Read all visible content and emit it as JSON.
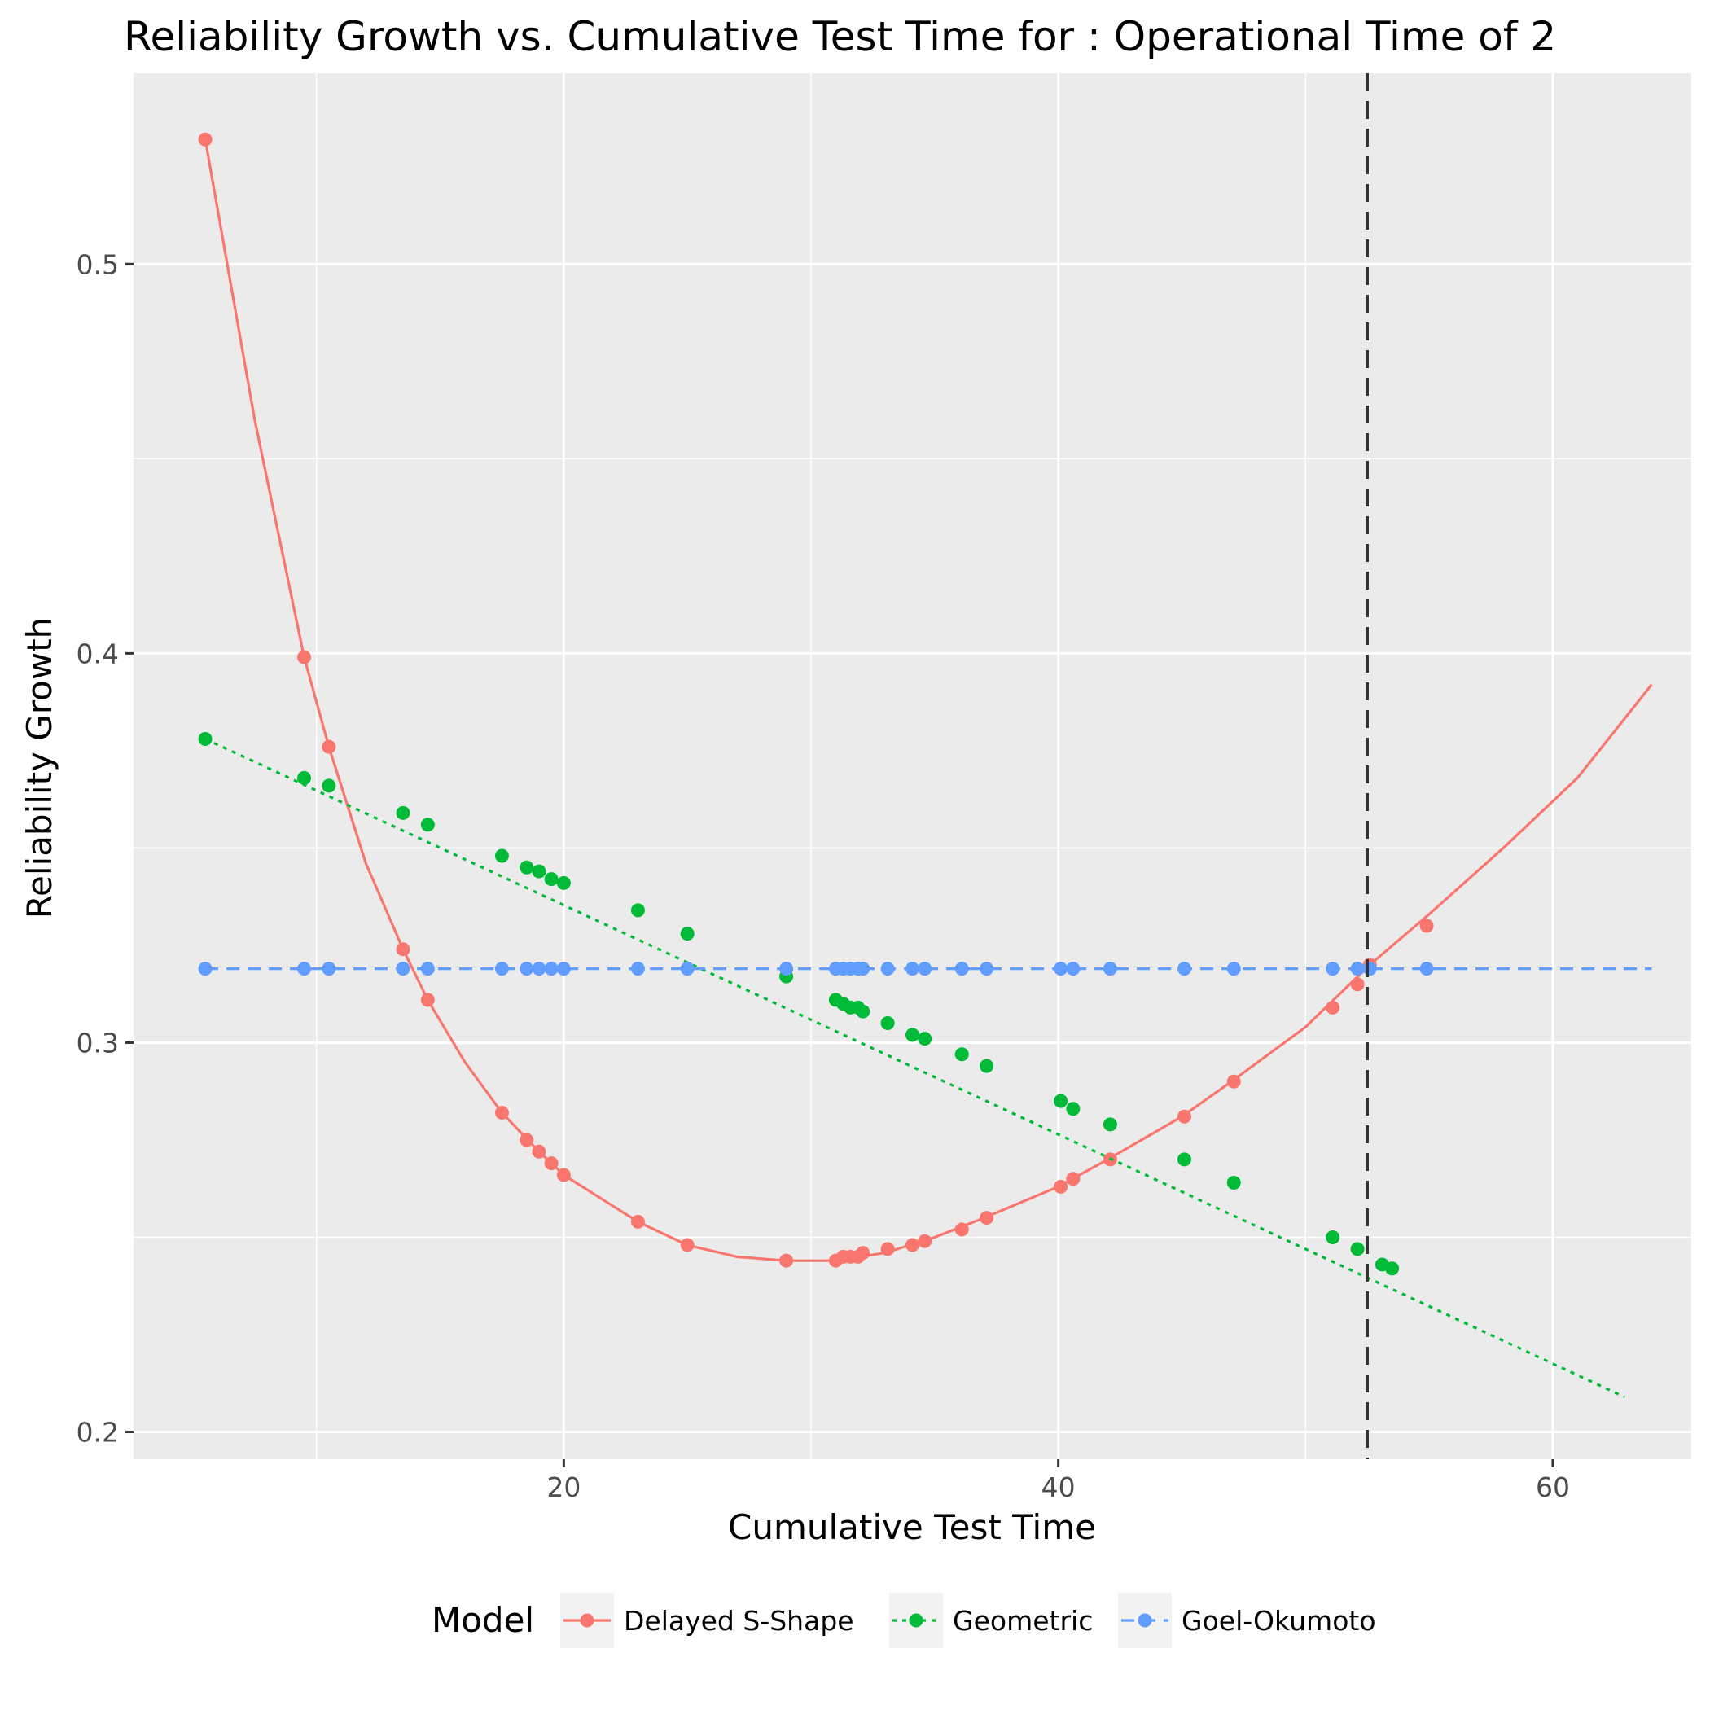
{
  "chart_data": {
    "type": "line",
    "title": "Reliability Growth vs. Cumulative Test Time for : Operational Time of 2",
    "xlabel": "Cumulative Test Time",
    "ylabel": "Reliability Growth",
    "xlim": [
      2.6,
      65.6
    ],
    "ylim": [
      0.193,
      0.549
    ],
    "x_ticks": [
      20,
      40,
      60
    ],
    "y_ticks": [
      0.2,
      0.3,
      0.4,
      0.5
    ],
    "x_minor_ticks": [
      10,
      30,
      50
    ],
    "y_minor_ticks": [
      0.25,
      0.35,
      0.45
    ],
    "grid": true,
    "panel_background": "#ebebeb",
    "grid_color": "#ffffff",
    "legend": {
      "title": "Model",
      "position": "bottom"
    },
    "vline": {
      "x": 52.5,
      "style": "dashed",
      "color": "#333333"
    },
    "series": [
      {
        "name": "Delayed S-Shape",
        "color": "#F8766D",
        "line_style": "solid",
        "points_x": [
          5.5,
          9.5,
          10.5,
          13.5,
          14.5,
          17.5,
          18.5,
          19.0,
          19.5,
          20.0,
          23.0,
          25.0,
          29.0,
          31.0,
          31.3,
          31.6,
          31.9,
          32.1,
          33.1,
          34.1,
          34.6,
          36.1,
          37.1,
          40.1,
          40.6,
          42.1,
          45.1,
          47.1,
          51.1,
          52.1,
          52.6,
          54.9
        ],
        "points_y": [
          0.532,
          0.399,
          0.376,
          0.324,
          0.311,
          0.282,
          0.275,
          0.272,
          0.269,
          0.266,
          0.254,
          0.248,
          0.244,
          0.244,
          0.245,
          0.245,
          0.245,
          0.246,
          0.247,
          0.248,
          0.249,
          0.252,
          0.255,
          0.263,
          0.265,
          0.27,
          0.281,
          0.29,
          0.309,
          0.315,
          0.32,
          0.33
        ],
        "curve_x": [
          5.5,
          7.5,
          9.5,
          10.5,
          12.0,
          13.5,
          14.5,
          16.0,
          17.5,
          19.0,
          20.0,
          21.5,
          23.0,
          25.0,
          27.0,
          29.0,
          31.0,
          33.0,
          35.0,
          37.0,
          40.0,
          42.0,
          45.0,
          47.0,
          50.0,
          52.6,
          55.0,
          58.0,
          61.0,
          64.0
        ],
        "curve_y": [
          0.532,
          0.46,
          0.399,
          0.376,
          0.346,
          0.324,
          0.311,
          0.295,
          0.282,
          0.272,
          0.266,
          0.26,
          0.254,
          0.248,
          0.245,
          0.244,
          0.244,
          0.246,
          0.25,
          0.255,
          0.263,
          0.27,
          0.281,
          0.29,
          0.304,
          0.32,
          0.333,
          0.35,
          0.368,
          0.392
        ]
      },
      {
        "name": "Geometric",
        "color": "#00BA38",
        "line_style": "dotted",
        "points_x": [
          5.5,
          9.5,
          10.5,
          13.5,
          14.5,
          17.5,
          18.5,
          19.0,
          19.5,
          20.0,
          23.0,
          25.0,
          29.0,
          31.0,
          31.3,
          31.6,
          31.9,
          32.1,
          33.1,
          34.1,
          34.6,
          36.1,
          37.1,
          40.1,
          40.6,
          42.1,
          45.1,
          47.1,
          51.1,
          52.1,
          53.1,
          53.5
        ],
        "points_y": [
          0.378,
          0.368,
          0.366,
          0.359,
          0.356,
          0.348,
          0.345,
          0.344,
          0.342,
          0.341,
          0.334,
          0.328,
          0.317,
          0.311,
          0.31,
          0.309,
          0.309,
          0.308,
          0.305,
          0.302,
          0.301,
          0.297,
          0.294,
          0.285,
          0.283,
          0.279,
          0.27,
          0.264,
          0.25,
          0.247,
          0.243,
          0.242
        ],
        "curve_x": [
          5.5,
          62.9
        ],
        "curve_y": [
          0.378,
          0.209
        ]
      },
      {
        "name": "Goel-Okumoto",
        "color": "#619CFF",
        "line_style": "dashed",
        "points_x": [
          5.5,
          9.5,
          10.5,
          13.5,
          14.5,
          17.5,
          18.5,
          19.0,
          19.5,
          20.0,
          23.0,
          25.0,
          29.0,
          31.0,
          31.3,
          31.6,
          31.9,
          32.1,
          33.1,
          34.1,
          34.6,
          36.1,
          37.1,
          40.1,
          40.6,
          42.1,
          45.1,
          47.1,
          51.1,
          52.1,
          52.6,
          54.9
        ],
        "points_y": [
          0.319,
          0.319,
          0.319,
          0.319,
          0.319,
          0.319,
          0.319,
          0.319,
          0.319,
          0.319,
          0.319,
          0.319,
          0.319,
          0.319,
          0.319,
          0.319,
          0.319,
          0.319,
          0.319,
          0.319,
          0.319,
          0.319,
          0.319,
          0.319,
          0.319,
          0.319,
          0.319,
          0.319,
          0.319,
          0.319,
          0.319,
          0.319
        ],
        "curve_x": [
          5.5,
          64.0
        ],
        "curve_y": [
          0.319,
          0.319
        ]
      }
    ]
  }
}
